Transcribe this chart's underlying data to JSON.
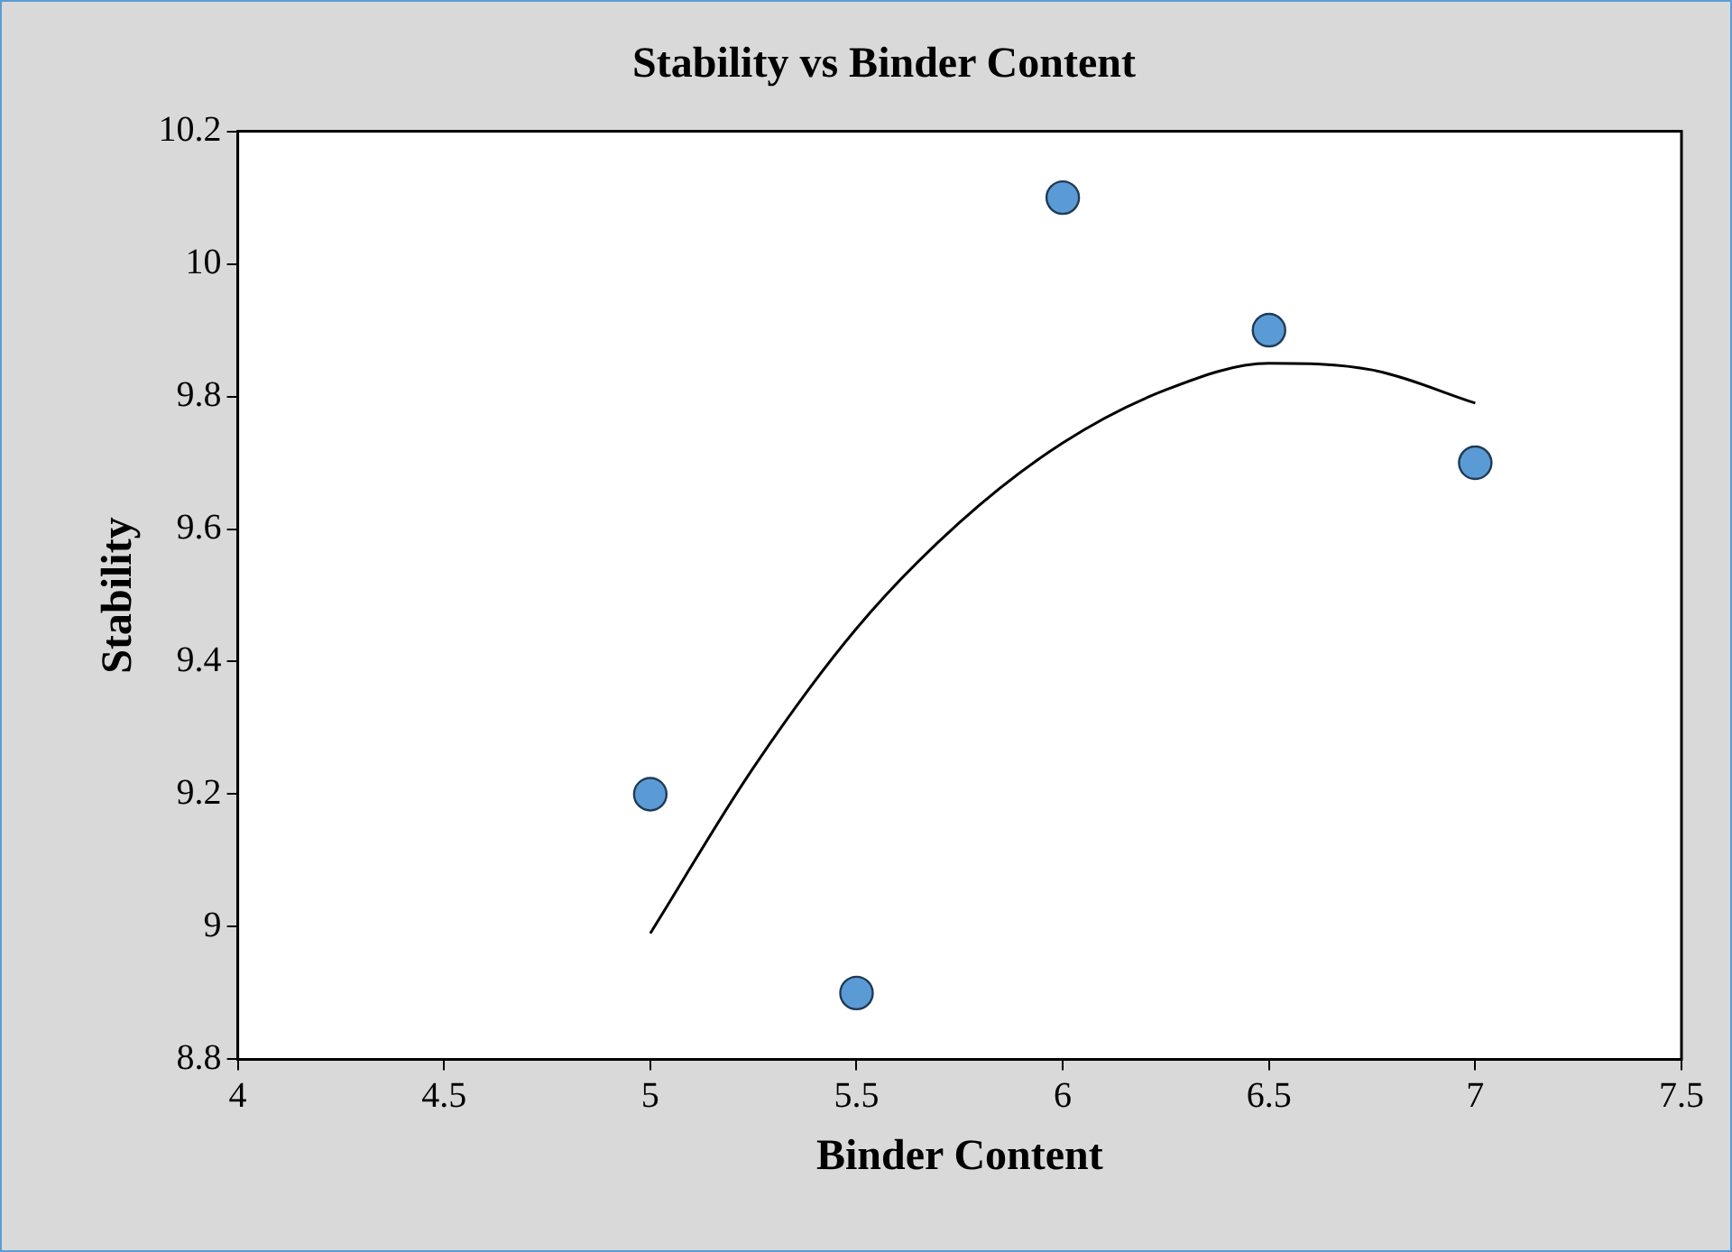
{
  "chart_data": {
    "type": "scatter",
    "title": "Stability vs Binder Content",
    "xlabel": "Binder Content",
    "ylabel": "Stability",
    "xlim": [
      4,
      7.5
    ],
    "xticks": [
      4,
      4.5,
      5,
      5.5,
      6,
      6.5,
      7,
      7.5
    ],
    "ylim": [
      8.8,
      10.2
    ],
    "yticks": [
      8.8,
      9,
      9.2,
      9.4,
      9.6,
      9.8,
      10,
      10.2
    ],
    "grid": false,
    "legend": false,
    "marker": "circle",
    "series": [
      {
        "type": "scatter",
        "color": "#5b9bd5",
        "x": [
          5,
          5.5,
          6,
          6.5,
          7
        ],
        "values": [
          9.2,
          8.9,
          10.1,
          9.9,
          9.7
        ]
      },
      {
        "type": "line",
        "color": "#000000",
        "marker": "none",
        "line_style": "solid",
        "x": [
          5,
          5.25,
          5.5,
          5.75,
          6,
          6.25,
          6.5,
          6.75,
          7
        ],
        "values": [
          8.99,
          9.24,
          9.45,
          9.61,
          9.73,
          9.81,
          9.85,
          9.84,
          9.79
        ]
      }
    ]
  }
}
